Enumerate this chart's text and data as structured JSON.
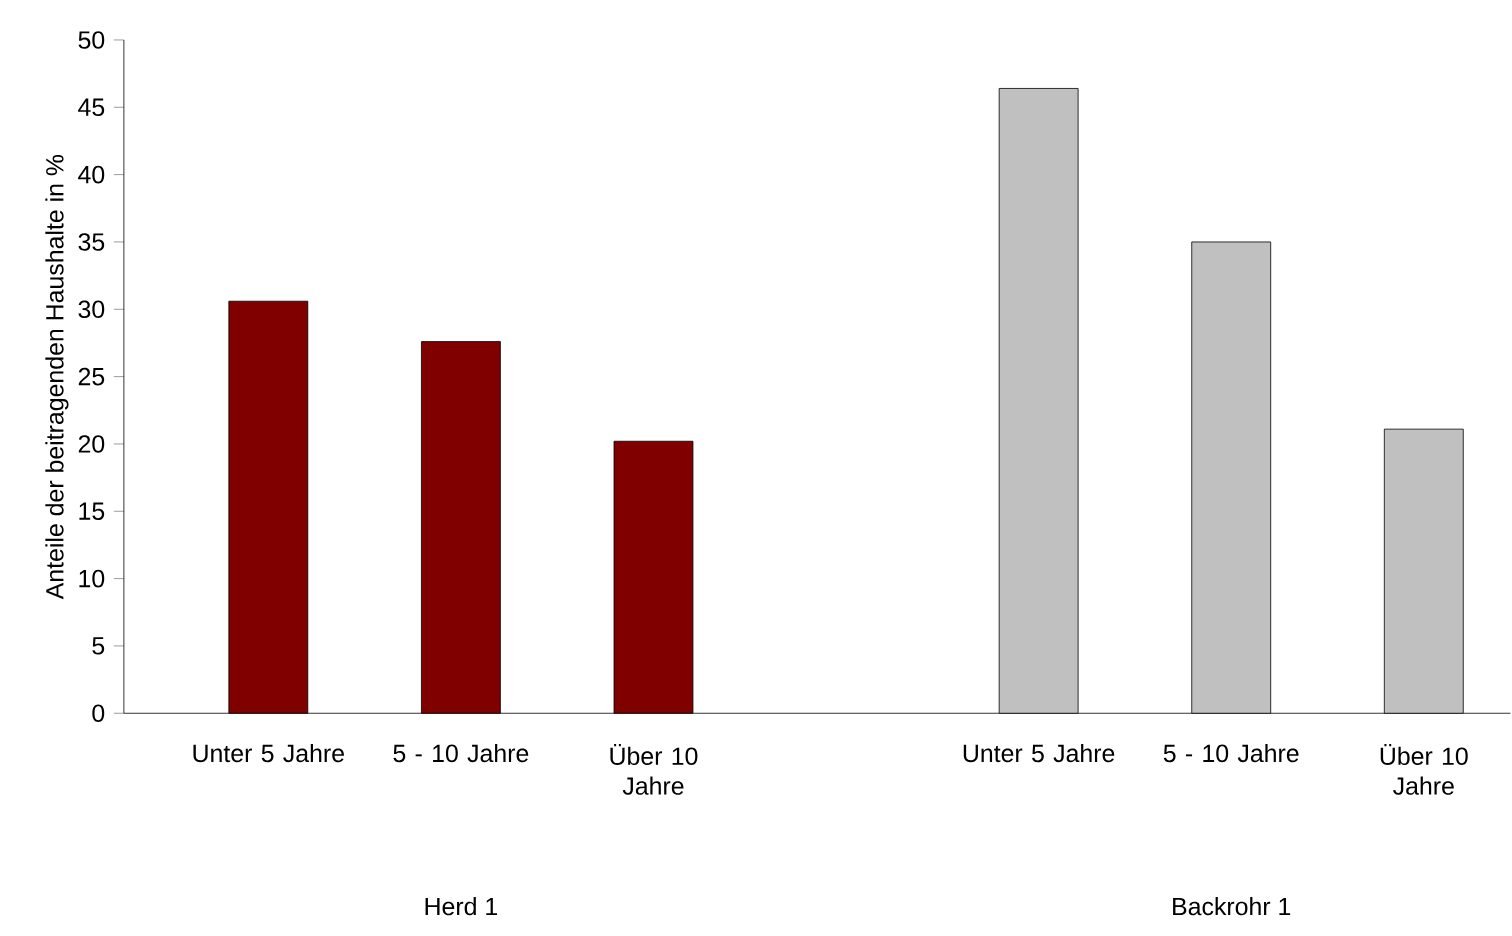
{
  "chart_data": {
    "type": "bar",
    "ylabel": "Anteile der beitragenden Haushalte in %",
    "categories": [
      "Unter 5 Jahre",
      "5 - 10 Jahre",
      "Über 10 Jahre",
      null,
      "Unter 5 Jahre",
      "5 - 10 Jahre",
      "Über 10 Jahre"
    ],
    "values": [
      30.6,
      27.6,
      20.2,
      null,
      46.4,
      35.0,
      21.1
    ],
    "colors": [
      "#800000",
      "#800000",
      "#800000",
      "#c0c0c0",
      "#c0c0c0",
      "#c0c0c0",
      "#c0c0c0"
    ],
    "ylim": [
      0,
      50
    ],
    "yticks": [
      0,
      5,
      10,
      15,
      20,
      25,
      30,
      35,
      40,
      45,
      50
    ],
    "annotations": [
      "Herd 1",
      "Backrohr 1"
    ]
  }
}
